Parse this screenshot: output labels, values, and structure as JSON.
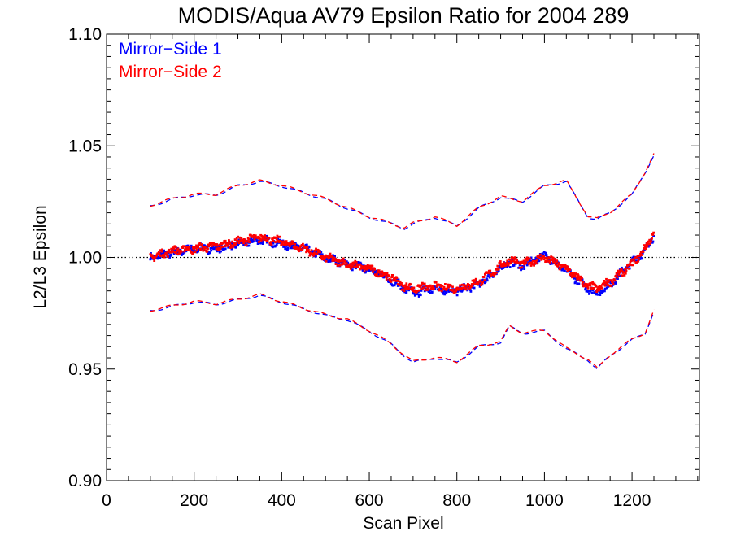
{
  "chart_data": {
    "type": "line",
    "title": "MODIS/Aqua AV79 Epsilon Ratio for 2004 289",
    "xlabel": "Scan Pixel",
    "ylabel": "L2/L3 Epsilon",
    "xlim": [
      0,
      1354
    ],
    "ylim": [
      0.9,
      1.1
    ],
    "x_ticks": [
      0,
      200,
      400,
      600,
      800,
      1000,
      1200
    ],
    "x_tick_labels": [
      "0",
      "200",
      "400",
      "600",
      "800",
      "1000",
      "1200"
    ],
    "y_ticks": [
      0.9,
      0.95,
      1.0,
      1.05,
      1.1
    ],
    "y_tick_labels": [
      "0.90",
      "0.95",
      "1.00",
      "1.05",
      "1.10"
    ],
    "reference_line": {
      "y": 1.0,
      "style": "dotted",
      "color": "#000000"
    },
    "legend": {
      "position": "top-left",
      "entries": [
        {
          "label": "Mirror−Side 1",
          "color": "#0000ff"
        },
        {
          "label": "Mirror−Side 2",
          "color": "#ff0000"
        }
      ]
    },
    "x": [
      100,
      150,
      200,
      250,
      300,
      350,
      400,
      450,
      500,
      550,
      600,
      650,
      680,
      700,
      750,
      800,
      850,
      900,
      920,
      950,
      1000,
      1050,
      1100,
      1120,
      1150,
      1200,
      1230,
      1250
    ],
    "series": [
      {
        "name": "Mirror−Side 1",
        "color": "#0000ff",
        "marker": "dots",
        "values": [
          1.0,
          1.002,
          1.004,
          1.004,
          1.006,
          1.008,
          1.006,
          1.004,
          1.0,
          0.997,
          0.995,
          0.99,
          0.986,
          0.984,
          0.986,
          0.985,
          0.988,
          0.995,
          0.998,
          0.996,
          1.001,
          0.994,
          0.986,
          0.984,
          0.988,
          0.998,
          1.003,
          1.01
        ]
      },
      {
        "name": "Mirror−Side 2",
        "color": "#ff0000",
        "marker": "dots",
        "values": [
          1.0,
          1.003,
          1.004,
          1.005,
          1.007,
          1.009,
          1.007,
          1.004,
          1.0,
          0.997,
          0.995,
          0.991,
          0.987,
          0.986,
          0.987,
          0.986,
          0.989,
          0.996,
          0.999,
          0.997,
          1.0,
          0.995,
          0.987,
          0.986,
          0.989,
          0.997,
          1.004,
          1.011
        ]
      }
    ],
    "bounds": [
      {
        "name": "upper",
        "style": "dashed",
        "values": [
          1.023,
          1.026,
          1.028,
          1.028,
          1.032,
          1.034,
          1.032,
          1.029,
          1.026,
          1.022,
          1.018,
          1.015,
          1.013,
          1.015,
          1.018,
          1.014,
          1.022,
          1.027,
          1.026,
          1.025,
          1.032,
          1.034,
          1.018,
          1.017,
          1.02,
          1.028,
          1.038,
          1.046
        ]
      },
      {
        "name": "lower",
        "style": "dashed",
        "values": [
          0.976,
          0.978,
          0.98,
          0.979,
          0.981,
          0.983,
          0.98,
          0.977,
          0.974,
          0.972,
          0.967,
          0.961,
          0.956,
          0.953,
          0.955,
          0.953,
          0.96,
          0.962,
          0.969,
          0.966,
          0.967,
          0.959,
          0.954,
          0.95,
          0.956,
          0.963,
          0.966,
          0.976
        ]
      }
    ],
    "grid": false
  }
}
